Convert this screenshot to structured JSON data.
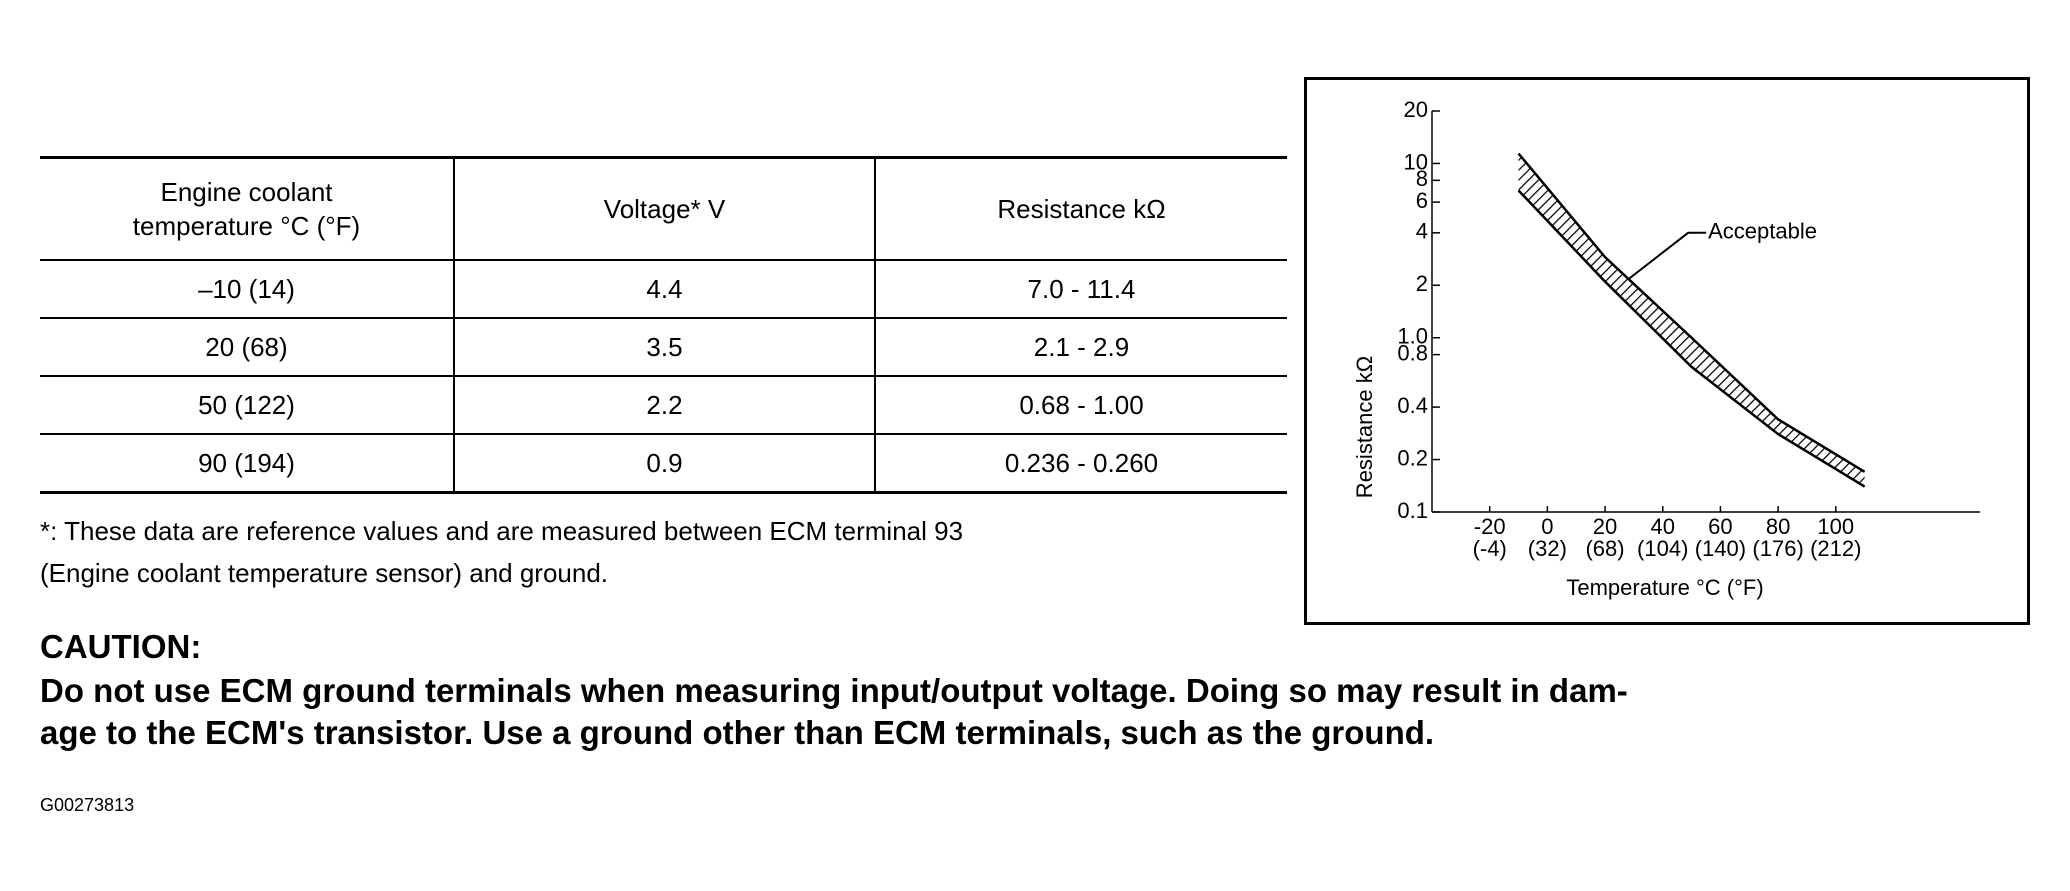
{
  "table": {
    "header": [
      "Engine coolant\ntemperature    °C (°F)",
      "Voltage*    V",
      "Resistance    kΩ"
    ],
    "rows": [
      [
        "–10 (14)",
        "4.4",
        "7.0 - 11.4"
      ],
      [
        "20 (68)",
        "3.5",
        "2.1 - 2.9"
      ],
      [
        "50 (122)",
        "2.2",
        "0.68 - 1.00"
      ],
      [
        "90 (194)",
        "0.9",
        "0.236 - 0.260"
      ]
    ]
  },
  "note": {
    "lines": [
      "*: These data are reference values and are measured between ECM terminal 93",
      "(Engine coolant temperature sensor) and ground."
    ]
  },
  "caution": {
    "title": "CAUTION:",
    "lines": [
      "Do not use ECM ground terminals when measuring input/output voltage. Doing so may result in dam-",
      "age to the ECM's transistor. Use a ground other than ECM terminals, such as the ground."
    ]
  },
  "figure_id": "G00273813",
  "chart_data": {
    "type": "band",
    "y_label": "Resistance  kΩ",
    "x_label": "Temperature °C (°F)",
    "annotation": "Acceptable",
    "x": [
      -10,
      20,
      50,
      80,
      110
    ],
    "series": [
      {
        "values": [
          11.4,
          2.9,
          1.0,
          0.34,
          0.17
        ]
      },
      {
        "values": [
          7.0,
          2.1,
          0.68,
          0.28,
          0.14
        ]
      }
    ],
    "xlim": [
      -40,
      150
    ],
    "xticks": [
      -20,
      0,
      20,
      40,
      60,
      80,
      100
    ],
    "xtick_sublabels": [
      "(-4)",
      "(32)",
      "(68)",
      "(104)",
      "(140)",
      "(176)",
      "(212)"
    ],
    "ylim": [
      0.1,
      20
    ],
    "log_y": true,
    "yticks": [
      0.1,
      0.2,
      0.4,
      0.8,
      {
        "value": 1,
        "label": "1.0"
      },
      2,
      4,
      6,
      8,
      10,
      20
    ],
    "color": "#000000"
  }
}
